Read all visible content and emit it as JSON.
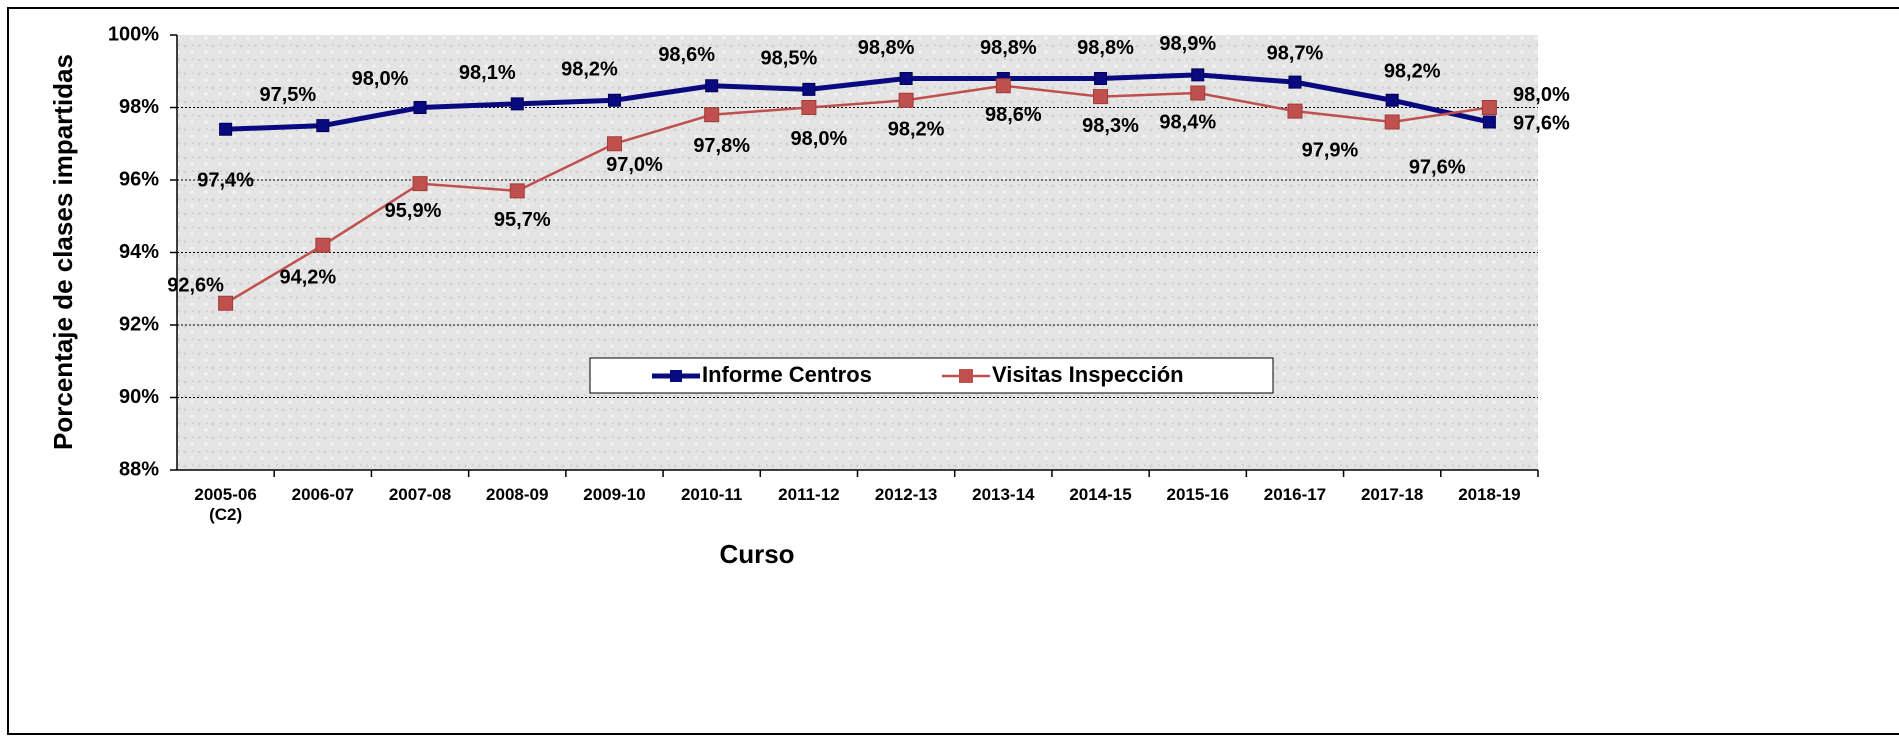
{
  "chart_data": {
    "type": "line",
    "x_label": "Curso",
    "y_label": "Porcentaje de clases impartidas",
    "categories": [
      "2005-06\n(C2)",
      "2006-07",
      "2007-08",
      "2008-09",
      "2009-10",
      "2010-11",
      "2011-12",
      "2012-13",
      "2013-14",
      "2014-15",
      "2015-16",
      "2016-17",
      "2017-18",
      "2018-19"
    ],
    "series": [
      {
        "name": "Informe Centros",
        "color": "#0a0a80",
        "values": [
          97.4,
          97.5,
          98.0,
          98.1,
          98.2,
          98.6,
          98.5,
          98.8,
          98.8,
          98.8,
          98.9,
          98.7,
          98.2,
          97.6
        ],
        "value_labels": [
          "97,4%",
          "97,5%",
          "98,0%",
          "98,1%",
          "98,2%",
          "98,6%",
          "98,5%",
          "98,8%",
          "98,8%",
          "98,8%",
          "98,9%",
          "98,7%",
          "98,2%",
          "97,6%"
        ]
      },
      {
        "name": "Visitas Inspección",
        "color": "#c0504d",
        "values": [
          92.6,
          94.2,
          95.9,
          95.7,
          97.0,
          97.8,
          98.0,
          98.2,
          98.6,
          98.3,
          98.4,
          97.9,
          97.6,
          98.0
        ],
        "value_labels": [
          "92,6%",
          "94,2%",
          "95,9%",
          "95,7%",
          "97,0%",
          "97,8%",
          "98,0%",
          "98,2%",
          "98,6%",
          "98,3%",
          "98,4%",
          "97,9%",
          "97,6%",
          "98,0%"
        ]
      }
    ],
    "ylim": [
      88,
      100
    ],
    "yticks": [
      {
        "value": 88,
        "label": "88%"
      },
      {
        "value": 90,
        "label": "90%"
      },
      {
        "value": 92,
        "label": "92%"
      },
      {
        "value": 94,
        "label": "94%"
      },
      {
        "value": 96,
        "label": "96%"
      },
      {
        "value": 98,
        "label": "98%"
      },
      {
        "value": 100,
        "label": "100%"
      }
    ],
    "grid": true
  }
}
